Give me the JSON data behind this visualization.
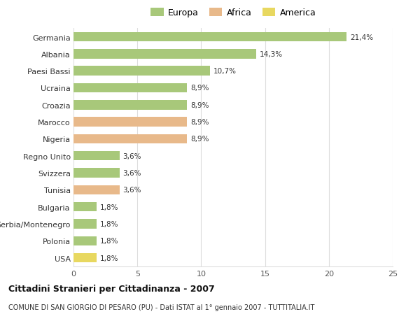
{
  "categories": [
    "Germania",
    "Albania",
    "Paesi Bassi",
    "Ucraina",
    "Croazia",
    "Marocco",
    "Nigeria",
    "Regno Unito",
    "Svizzera",
    "Tunisia",
    "Bulgaria",
    "Serbia/Montenegro",
    "Polonia",
    "USA"
  ],
  "values": [
    21.4,
    14.3,
    10.7,
    8.9,
    8.9,
    8.9,
    8.9,
    3.6,
    3.6,
    3.6,
    1.8,
    1.8,
    1.8,
    1.8
  ],
  "labels": [
    "21,4%",
    "14,3%",
    "10,7%",
    "8,9%",
    "8,9%",
    "8,9%",
    "8,9%",
    "3,6%",
    "3,6%",
    "3,6%",
    "1,8%",
    "1,8%",
    "1,8%",
    "1,8%"
  ],
  "continent": [
    "Europa",
    "Europa",
    "Europa",
    "Europa",
    "Europa",
    "Africa",
    "Africa",
    "Europa",
    "Europa",
    "Africa",
    "Europa",
    "Europa",
    "Europa",
    "America"
  ],
  "colors": {
    "Europa": "#a8c87a",
    "Africa": "#e8b98a",
    "America": "#e8d860"
  },
  "legend_order": [
    "Europa",
    "Africa",
    "America"
  ],
  "legend_colors": {
    "Europa": "#a8c87a",
    "Africa": "#e8b98a",
    "America": "#e8d860"
  },
  "xlim": [
    0,
    25
  ],
  "xticks": [
    0,
    5,
    10,
    15,
    20,
    25
  ],
  "title": "Cittadini Stranieri per Cittadinanza - 2007",
  "subtitle": "COMUNE DI SAN GIORGIO DI PESARO (PU) - Dati ISTAT al 1° gennaio 2007 - TUTTITALIA.IT",
  "background_color": "#ffffff",
  "grid_color": "#dddddd",
  "bar_height": 0.55
}
